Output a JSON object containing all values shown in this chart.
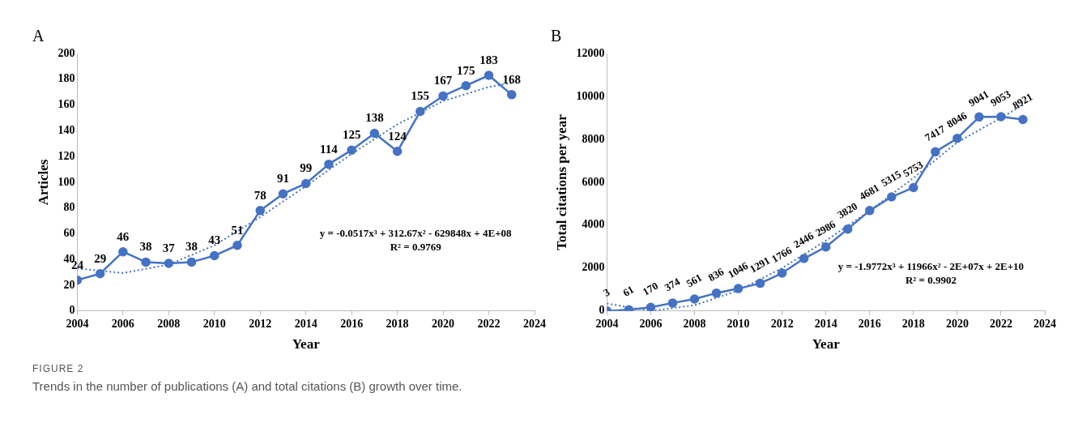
{
  "chart_data": [
    {
      "type": "line",
      "title": "A",
      "xlabel": "Year",
      "ylabel": "Articles",
      "x": [
        2004,
        2005,
        2006,
        2007,
        2008,
        2009,
        2010,
        2011,
        2012,
        2013,
        2014,
        2015,
        2016,
        2017,
        2018,
        2019,
        2020,
        2021,
        2022,
        2023
      ],
      "series": [
        {
          "color": "#4472c4",
          "values": [
            24,
            29,
            46,
            38,
            37,
            38,
            43,
            51,
            78,
            91,
            99,
            114,
            125,
            138,
            124,
            155,
            167,
            175,
            183,
            168
          ],
          "value_labels": [
            "24",
            "29",
            "46",
            "38",
            "37",
            "38",
            "43",
            "51",
            "78",
            "91",
            "99",
            "114",
            "125",
            "138",
            "124",
            "155",
            "167",
            "175",
            "183",
            "168"
          ],
          "marker": "circle",
          "line_style": "solid"
        },
        {
          "color": "#4472c4",
          "x": [
            2004,
            2006,
            2008,
            2010,
            2012,
            2014,
            2016,
            2018,
            2020,
            2022,
            2023
          ],
          "values": [
            33,
            29.5,
            36,
            51,
            73,
            97,
            122,
            145,
            163,
            174,
            177
          ],
          "marker": "none",
          "line_style": "dotted"
        }
      ],
      "xlim": [
        2004,
        2024
      ],
      "xticks": [
        2004,
        2006,
        2008,
        2010,
        2012,
        2014,
        2016,
        2018,
        2020,
        2022,
        2024
      ],
      "ylim": [
        0,
        200
      ],
      "yticks": [
        0,
        20,
        40,
        60,
        80,
        100,
        120,
        140,
        160,
        180,
        200
      ],
      "annotations": [
        "y = -0.0517x³ + 312.67x² - 629848x + 4E+08",
        "R² = 0.9769"
      ]
    },
    {
      "type": "line",
      "title": "B",
      "xlabel": "Year",
      "ylabel": "Total citations per year",
      "x": [
        2004,
        2005,
        2006,
        2007,
        2008,
        2009,
        2010,
        2011,
        2012,
        2013,
        2014,
        2015,
        2016,
        2017,
        2018,
        2019,
        2020,
        2021,
        2022,
        2023
      ],
      "series": [
        {
          "color": "#4472c4",
          "values": [
            3,
            61,
            170,
            374,
            561,
            836,
            1046,
            1291,
            1766,
            2446,
            2986,
            3820,
            4681,
            5315,
            5753,
            7417,
            8046,
            9041,
            9053,
            8921
          ],
          "value_labels": [
            "3",
            "61",
            "170",
            "374",
            "561",
            "836",
            "1046",
            "1291",
            "1766",
            "2446",
            "2986",
            "3820",
            "4681",
            "5315",
            "5753",
            "7417",
            "8046",
            "9041",
            "9053",
            "8921"
          ],
          "marker": "circle",
          "line_style": "solid"
        },
        {
          "color": "#4472c4",
          "x": [
            2004,
            2006,
            2008,
            2010,
            2012,
            2014,
            2016,
            2018,
            2020,
            2022,
            2023
          ],
          "values": [
            350,
            0,
            270,
            950,
            2000,
            3280,
            4660,
            6200,
            7860,
            9000,
            9600
          ],
          "marker": "none",
          "line_style": "dotted"
        }
      ],
      "xlim": [
        2004,
        2024
      ],
      "xticks": [
        2004,
        2006,
        2008,
        2010,
        2012,
        2014,
        2016,
        2018,
        2020,
        2022,
        2024
      ],
      "ylim": [
        0,
        12000
      ],
      "yticks": [
        0,
        2000,
        4000,
        6000,
        8000,
        10000,
        12000
      ],
      "annotations": [
        "y = -1.9772x³ + 11966x² - 2E+07x + 2E+10",
        "R² = 0.9902",
        "FIGURE 2",
        "Trends in the number of publications (A) and total citations (B) growth over time."
      ]
    }
  ]
}
